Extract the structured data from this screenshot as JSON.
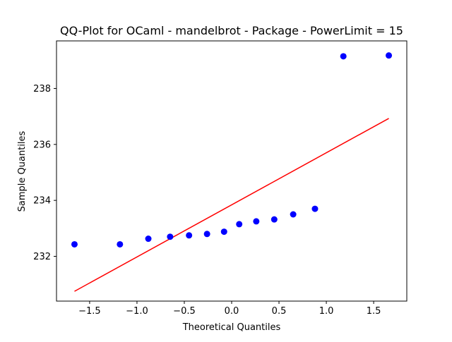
{
  "chart_data": {
    "type": "scatter",
    "title": "QQ-Plot for OCaml - mandelbrot - Package - PowerLimit = 15",
    "xlabel": "Theoretical Quantiles",
    "ylabel": "Sample Quantiles",
    "xlim": [
      -1.85,
      1.85
    ],
    "ylim": [
      230.4,
      239.7
    ],
    "xticks": [
      -1.5,
      -1.0,
      -0.5,
      0.0,
      0.5,
      1.0,
      1.5
    ],
    "xtick_labels": [
      "−1.5",
      "−1.0",
      "−0.5",
      "0.0",
      "0.5",
      "1.0",
      "1.5"
    ],
    "yticks": [
      232,
      234,
      236,
      238
    ],
    "ytick_labels": [
      "232",
      "234",
      "236",
      "238"
    ],
    "grid": false,
    "points": {
      "color": "#0000ff",
      "x": [
        -1.66,
        -1.18,
        -0.88,
        -0.65,
        -0.45,
        -0.26,
        -0.08,
        0.08,
        0.26,
        0.45,
        0.65,
        0.88,
        1.18,
        1.66
      ],
      "y": [
        232.43,
        232.43,
        232.63,
        232.7,
        232.75,
        232.8,
        232.88,
        233.15,
        233.25,
        233.32,
        233.5,
        233.7,
        239.15,
        239.18
      ]
    },
    "reference_line": {
      "color": "#ff0000",
      "x": [
        -1.66,
        1.66
      ],
      "y": [
        230.75,
        236.93
      ]
    }
  }
}
